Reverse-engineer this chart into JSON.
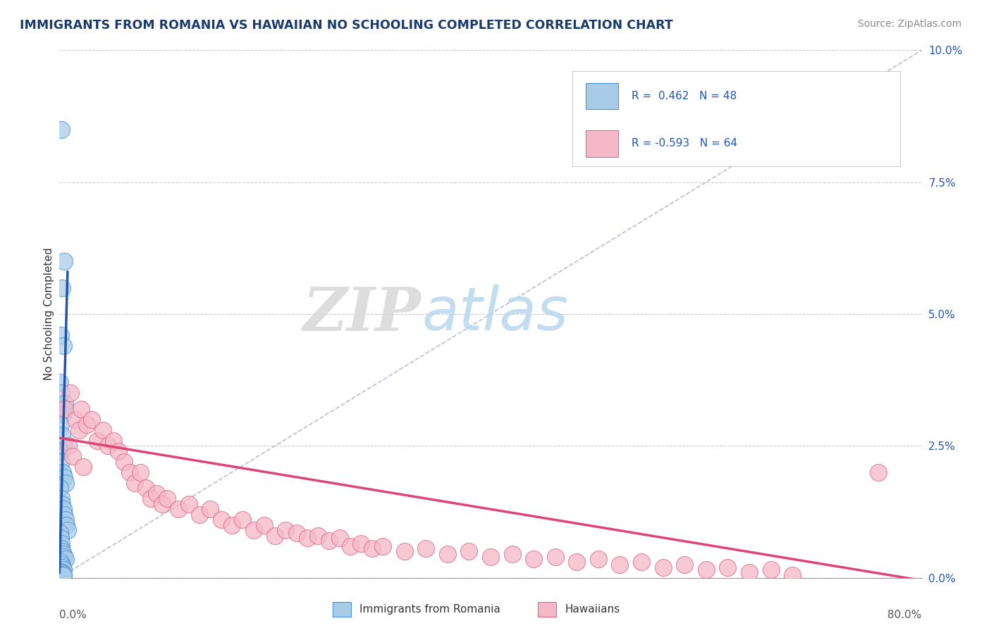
{
  "title": "IMMIGRANTS FROM ROMANIA VS HAWAIIAN NO SCHOOLING COMPLETED CORRELATION CHART",
  "source_text": "Source: ZipAtlas.com",
  "ylabel": "No Schooling Completed",
  "right_ytick_labels": [
    "0.0%",
    "2.5%",
    "5.0%",
    "7.5%",
    "10.0%"
  ],
  "right_yvalues": [
    0.0,
    2.5,
    5.0,
    7.5,
    10.0
  ],
  "legend_r1": "R =  0.462   N = 48",
  "legend_r2": "R = -0.593   N = 64",
  "legend_label1": "Immigrants from Romania",
  "legend_label2": "Hawaiians",
  "blue_face": "#a8cce8",
  "blue_edge": "#4a90d9",
  "pink_face": "#f5b8c8",
  "pink_edge": "#e06888",
  "blue_line_color": "#2255aa",
  "pink_line_color": "#dd4477",
  "dash_line_color": "#aaaacc",
  "title_color": "#1a3a6b",
  "source_color": "#888888",
  "legend_text_color": "#2255bb",
  "blue_scatter": [
    [
      0.15,
      8.5
    ],
    [
      0.45,
      6.0
    ],
    [
      0.25,
      5.5
    ],
    [
      0.1,
      4.6
    ],
    [
      0.35,
      4.4
    ],
    [
      0.05,
      3.7
    ],
    [
      0.2,
      3.5
    ],
    [
      0.5,
      3.3
    ],
    [
      0.3,
      3.1
    ],
    [
      0.12,
      2.9
    ],
    [
      0.22,
      2.7
    ],
    [
      0.38,
      2.5
    ],
    [
      0.08,
      2.4
    ],
    [
      0.18,
      2.2
    ],
    [
      0.28,
      2.0
    ],
    [
      0.42,
      1.9
    ],
    [
      0.55,
      1.8
    ],
    [
      0.05,
      1.7
    ],
    [
      0.15,
      1.5
    ],
    [
      0.25,
      1.4
    ],
    [
      0.35,
      1.3
    ],
    [
      0.45,
      1.2
    ],
    [
      0.55,
      1.1
    ],
    [
      0.65,
      1.0
    ],
    [
      0.75,
      0.9
    ],
    [
      0.05,
      0.85
    ],
    [
      0.1,
      0.75
    ],
    [
      0.2,
      0.65
    ],
    [
      0.15,
      0.55
    ],
    [
      0.25,
      0.5
    ],
    [
      0.35,
      0.45
    ],
    [
      0.45,
      0.4
    ],
    [
      0.55,
      0.35
    ],
    [
      0.08,
      0.3
    ],
    [
      0.18,
      0.25
    ],
    [
      0.28,
      0.2
    ],
    [
      0.38,
      0.15
    ],
    [
      0.12,
      0.12
    ],
    [
      0.22,
      0.1
    ],
    [
      0.32,
      0.08
    ],
    [
      0.05,
      0.05
    ],
    [
      0.1,
      0.05
    ],
    [
      0.15,
      0.05
    ],
    [
      0.2,
      0.05
    ],
    [
      0.25,
      0.05
    ],
    [
      0.3,
      0.05
    ],
    [
      0.35,
      0.05
    ],
    [
      0.4,
      0.05
    ]
  ],
  "pink_scatter": [
    [
      0.5,
      3.2
    ],
    [
      1.0,
      3.5
    ],
    [
      1.5,
      3.0
    ],
    [
      1.8,
      2.8
    ],
    [
      2.0,
      3.2
    ],
    [
      2.5,
      2.9
    ],
    [
      3.0,
      3.0
    ],
    [
      3.5,
      2.6
    ],
    [
      4.0,
      2.8
    ],
    [
      4.5,
      2.5
    ],
    [
      5.0,
      2.6
    ],
    [
      5.5,
      2.4
    ],
    [
      6.0,
      2.2
    ],
    [
      6.5,
      2.0
    ],
    [
      7.0,
      1.8
    ],
    [
      7.5,
      2.0
    ],
    [
      8.0,
      1.7
    ],
    [
      8.5,
      1.5
    ],
    [
      9.0,
      1.6
    ],
    [
      9.5,
      1.4
    ],
    [
      10.0,
      1.5
    ],
    [
      11.0,
      1.3
    ],
    [
      12.0,
      1.4
    ],
    [
      13.0,
      1.2
    ],
    [
      14.0,
      1.3
    ],
    [
      15.0,
      1.1
    ],
    [
      16.0,
      1.0
    ],
    [
      17.0,
      1.1
    ],
    [
      18.0,
      0.9
    ],
    [
      19.0,
      1.0
    ],
    [
      20.0,
      0.8
    ],
    [
      21.0,
      0.9
    ],
    [
      22.0,
      0.85
    ],
    [
      23.0,
      0.75
    ],
    [
      24.0,
      0.8
    ],
    [
      25.0,
      0.7
    ],
    [
      26.0,
      0.75
    ],
    [
      27.0,
      0.6
    ],
    [
      28.0,
      0.65
    ],
    [
      29.0,
      0.55
    ],
    [
      30.0,
      0.6
    ],
    [
      32.0,
      0.5
    ],
    [
      34.0,
      0.55
    ],
    [
      36.0,
      0.45
    ],
    [
      38.0,
      0.5
    ],
    [
      40.0,
      0.4
    ],
    [
      42.0,
      0.45
    ],
    [
      44.0,
      0.35
    ],
    [
      46.0,
      0.4
    ],
    [
      48.0,
      0.3
    ],
    [
      50.0,
      0.35
    ],
    [
      52.0,
      0.25
    ],
    [
      54.0,
      0.3
    ],
    [
      56.0,
      0.2
    ],
    [
      58.0,
      0.25
    ],
    [
      60.0,
      0.15
    ],
    [
      62.0,
      0.2
    ],
    [
      64.0,
      0.1
    ],
    [
      66.0,
      0.15
    ],
    [
      68.0,
      0.05
    ],
    [
      0.8,
      2.5
    ],
    [
      1.2,
      2.3
    ],
    [
      2.2,
      2.1
    ],
    [
      76.0,
      2.0
    ]
  ],
  "xmin": 0.0,
  "xmax": 80.0,
  "ymin": 0.0,
  "ymax": 10.0,
  "blue_trend_x": [
    0.0,
    0.75
  ],
  "blue_trend_y": [
    0.1,
    5.8
  ],
  "pink_trend_x": [
    0.0,
    80.0
  ],
  "pink_trend_y": [
    2.65,
    -0.05
  ],
  "dash_line_x": [
    0.0,
    80.0
  ],
  "dash_line_y": [
    0.0,
    10.0
  ],
  "background_color": "#ffffff"
}
